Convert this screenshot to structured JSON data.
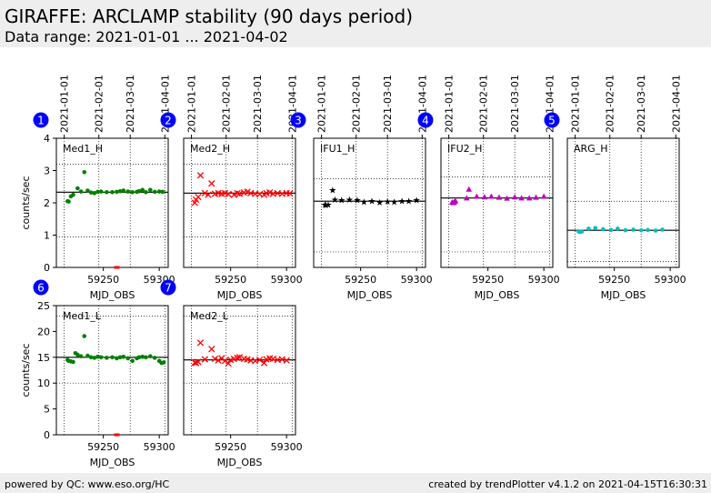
{
  "header": {
    "title": "GIRAFFE: ARCLAMP stability (90 days period)",
    "subtitle": "Data range: 2021-01-01 ... 2021-04-02"
  },
  "footer": {
    "left": "powered by QC: www.eso.org/HC",
    "right": "created by trendPlotter v4.1.2 on 2021-04-15T16:30:31"
  },
  "chart_data": [
    {
      "type": "scatter",
      "panel": "1",
      "label": "Med1_H",
      "color": "#008000",
      "marker": "circle",
      "xlabel": "MJD_OBS",
      "ylabel": "counts/sec",
      "xlim": [
        59208,
        59308
      ],
      "ylim": [
        0,
        4
      ],
      "yticks": [
        0,
        1,
        2,
        3,
        4
      ],
      "xticks": [
        59250,
        59300
      ],
      "ref_line": 2.33,
      "dotted": [
        2.33,
        3.2,
        0.94
      ],
      "points": [
        [
          59218,
          2.05
        ],
        [
          59219,
          2.04
        ],
        [
          59221,
          2.2
        ],
        [
          59223,
          2.25
        ],
        [
          59227,
          2.45
        ],
        [
          59230,
          2.35
        ],
        [
          59233,
          2.95
        ],
        [
          59236,
          2.38
        ],
        [
          59239,
          2.32
        ],
        [
          59242,
          2.3
        ],
        [
          59245,
          2.34
        ],
        [
          59248,
          2.35
        ],
        [
          59253,
          2.33
        ],
        [
          59258,
          2.33
        ],
        [
          59262,
          2.34
        ],
        [
          59265,
          2.36
        ],
        [
          59268,
          2.38
        ],
        [
          59272,
          2.35
        ],
        [
          59276,
          2.33
        ],
        [
          59280,
          2.34
        ],
        [
          59282,
          2.36
        ],
        [
          59285,
          2.4
        ],
        [
          59288,
          2.33
        ],
        [
          59292,
          2.4
        ],
        [
          59296,
          2.34
        ],
        [
          59300,
          2.35
        ],
        [
          59303,
          2.34
        ]
      ],
      "outliers": [
        [
          59262,
          0.0
        ]
      ]
    },
    {
      "type": "scatter",
      "panel": "2",
      "label": "Med2_H",
      "color": "#ff0000",
      "marker": "x",
      "xlabel": "MJD_OBS",
      "ylabel": "",
      "xlim": [
        59208,
        59308
      ],
      "ylim": [
        0,
        4
      ],
      "yticks": [],
      "xticks": [
        59250,
        59300
      ],
      "ref_line": 2.3,
      "dotted": [
        2.3,
        3.2,
        0.94
      ],
      "points": [
        [
          59218,
          2.0
        ],
        [
          59219,
          2.1
        ],
        [
          59221,
          2.18
        ],
        [
          59223,
          2.85
        ],
        [
          59227,
          2.3
        ],
        [
          59230,
          2.25
        ],
        [
          59233,
          2.6
        ],
        [
          59236,
          2.28
        ],
        [
          59239,
          2.3
        ],
        [
          59242,
          2.28
        ],
        [
          59245,
          2.3
        ],
        [
          59248,
          2.27
        ],
        [
          59253,
          2.25
        ],
        [
          59256,
          2.3
        ],
        [
          59258,
          2.28
        ],
        [
          59262,
          2.32
        ],
        [
          59265,
          2.34
        ],
        [
          59268,
          2.3
        ],
        [
          59272,
          2.28
        ],
        [
          59276,
          2.27
        ],
        [
          59280,
          2.25
        ],
        [
          59282,
          2.3
        ],
        [
          59285,
          2.32
        ],
        [
          59288,
          2.28
        ],
        [
          59292,
          2.3
        ],
        [
          59296,
          2.28
        ],
        [
          59300,
          2.3
        ],
        [
          59303,
          2.29
        ]
      ],
      "outliers": []
    },
    {
      "type": "scatter",
      "panel": "3",
      "label": "IFU1_H",
      "color": "#000000",
      "marker": "star",
      "xlabel": "MJD_OBS",
      "ylabel": "",
      "xlim": [
        59208,
        59308
      ],
      "ylim": [
        0,
        4
      ],
      "yticks": [],
      "xticks": [
        59250,
        59300
      ],
      "ref_line": 2.05,
      "dotted": [
        2.05,
        2.75,
        0.48
      ],
      "points": [
        [
          59218,
          1.95
        ],
        [
          59219,
          1.93
        ],
        [
          59221,
          1.95
        ],
        [
          59225,
          2.4
        ],
        [
          59227,
          2.1
        ],
        [
          59233,
          2.08
        ],
        [
          59240,
          2.1
        ],
        [
          59247,
          2.08
        ],
        [
          59253,
          2.03
        ],
        [
          59260,
          2.06
        ],
        [
          59267,
          2.02
        ],
        [
          59274,
          2.04
        ],
        [
          59280,
          2.03
        ],
        [
          59287,
          2.06
        ],
        [
          59293,
          2.05
        ],
        [
          59300,
          2.08
        ]
      ],
      "outliers": []
    },
    {
      "type": "scatter",
      "panel": "4",
      "label": "IFU2_H",
      "color": "#bf00bf",
      "marker": "triangle",
      "xlabel": "MJD_OBS",
      "ylabel": "",
      "xlim": [
        59208,
        59308
      ],
      "ylim": [
        0,
        4
      ],
      "yticks": [],
      "xticks": [
        59250,
        59300
      ],
      "ref_line": 2.15,
      "dotted": [
        2.15,
        2.8,
        0.48
      ],
      "points": [
        [
          59218,
          2.02
        ],
        [
          59219,
          2.0
        ],
        [
          59220,
          2.03
        ],
        [
          59221,
          2.06
        ],
        [
          59231,
          2.15
        ],
        [
          59233,
          2.42
        ],
        [
          59240,
          2.2
        ],
        [
          59247,
          2.18
        ],
        [
          59253,
          2.2
        ],
        [
          59260,
          2.17
        ],
        [
          59267,
          2.14
        ],
        [
          59274,
          2.18
        ],
        [
          59280,
          2.15
        ],
        [
          59287,
          2.15
        ],
        [
          59293,
          2.17
        ],
        [
          59300,
          2.2
        ]
      ],
      "outliers": []
    },
    {
      "type": "scatter",
      "panel": "5",
      "label": "ARG_H",
      "color": "#00bfbf",
      "marker": "circle",
      "xlabel": "MJD_OBS",
      "ylabel": "",
      "xlim": [
        59208,
        59308
      ],
      "ylim": [
        0,
        4
      ],
      "yticks": [],
      "xticks": [
        59250,
        59300
      ],
      "ref_line": 1.15,
      "dotted": [
        1.15,
        2.05,
        0.18
      ],
      "points": [
        [
          59218,
          1.12
        ],
        [
          59219,
          1.1
        ],
        [
          59221,
          1.11
        ],
        [
          59227,
          1.2
        ],
        [
          59233,
          1.22
        ],
        [
          59240,
          1.18
        ],
        [
          59247,
          1.16
        ],
        [
          59253,
          1.2
        ],
        [
          59260,
          1.15
        ],
        [
          59267,
          1.17
        ],
        [
          59274,
          1.15
        ],
        [
          59280,
          1.16
        ],
        [
          59287,
          1.14
        ],
        [
          59293,
          1.17
        ]
      ],
      "outliers": []
    },
    {
      "type": "scatter",
      "panel": "6",
      "label": "Med1_L",
      "color": "#008000",
      "marker": "circle",
      "xlabel": "MJD_OBS",
      "ylabel": "counts/sec",
      "xlim": [
        59208,
        59308
      ],
      "ylim": [
        0,
        25
      ],
      "yticks": [
        0,
        5,
        10,
        15,
        20,
        25
      ],
      "xticks": [
        59250,
        59300
      ],
      "ref_line": 15.0,
      "dotted": [
        15.0,
        23.0,
        10.0
      ],
      "points": [
        [
          59218,
          14.5
        ],
        [
          59219,
          14.3
        ],
        [
          59221,
          14.2
        ],
        [
          59223,
          14.1
        ],
        [
          59225,
          15.8
        ],
        [
          59227,
          15.5
        ],
        [
          59230,
          15.2
        ],
        [
          59233,
          19.1
        ],
        [
          59236,
          15.3
        ],
        [
          59239,
          15.0
        ],
        [
          59242,
          14.9
        ],
        [
          59245,
          15.1
        ],
        [
          59248,
          15.0
        ],
        [
          59253,
          14.9
        ],
        [
          59258,
          15.0
        ],
        [
          59262,
          14.8
        ],
        [
          59265,
          15.0
        ],
        [
          59268,
          15.1
        ],
        [
          59272,
          14.8
        ],
        [
          59276,
          14.3
        ],
        [
          59280,
          14.8
        ],
        [
          59282,
          15.0
        ],
        [
          59285,
          15.1
        ],
        [
          59288,
          15.0
        ],
        [
          59292,
          15.2
        ],
        [
          59296,
          14.9
        ],
        [
          59300,
          14.3
        ],
        [
          59302,
          13.9
        ],
        [
          59304,
          14.0
        ]
      ],
      "outliers": [
        [
          59262,
          0.0
        ]
      ]
    },
    {
      "type": "scatter",
      "panel": "7",
      "label": "Med2_L",
      "color": "#ff0000",
      "marker": "x",
      "xlabel": "MJD_OBS",
      "ylabel": "",
      "xlim": [
        59208,
        59308
      ],
      "ylim": [
        0,
        25
      ],
      "yticks": [],
      "xticks": [
        59250,
        59300
      ],
      "ref_line": 14.5,
      "dotted": [
        14.5,
        23.0,
        10.0
      ],
      "points": [
        [
          59218,
          14.0
        ],
        [
          59219,
          13.9
        ],
        [
          59221,
          14.1
        ],
        [
          59223,
          17.8
        ],
        [
          59227,
          14.6
        ],
        [
          59233,
          16.6
        ],
        [
          59236,
          14.7
        ],
        [
          59239,
          14.4
        ],
        [
          59242,
          14.8
        ],
        [
          59245,
          14.3
        ],
        [
          59248,
          13.8
        ],
        [
          59250,
          14.5
        ],
        [
          59253,
          14.7
        ],
        [
          59256,
          14.9
        ],
        [
          59258,
          15.0
        ],
        [
          59262,
          14.7
        ],
        [
          59265,
          14.6
        ],
        [
          59268,
          14.4
        ],
        [
          59272,
          14.3
        ],
        [
          59276,
          14.5
        ],
        [
          59280,
          13.9
        ],
        [
          59282,
          14.6
        ],
        [
          59285,
          14.8
        ],
        [
          59288,
          14.7
        ],
        [
          59292,
          14.5
        ],
        [
          59296,
          14.6
        ],
        [
          59300,
          14.4
        ]
      ],
      "outliers": []
    }
  ],
  "date_ticks": [
    {
      "label": "2021-01-01",
      "mjd": 59215
    },
    {
      "label": "2021-02-01",
      "mjd": 59246
    },
    {
      "label": "2021-03-01",
      "mjd": 59274
    },
    {
      "label": "2021-04-01",
      "mjd": 59305
    }
  ],
  "badge_color": "#0000ff"
}
